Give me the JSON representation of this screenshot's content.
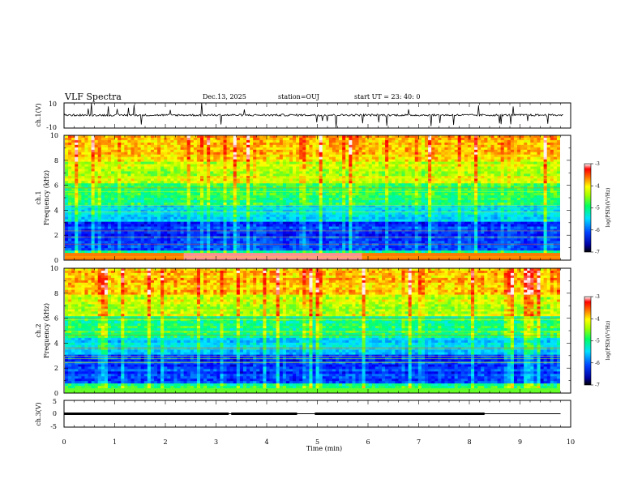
{
  "header": {
    "title": "VLF Spectra",
    "date": "Dec.13, 2025",
    "station": "station=OUJ",
    "start_ut": "start UT =  23: 40: 0"
  },
  "chart_data": [
    {
      "type": "line",
      "title": "",
      "ylabel": "ch.1(V)",
      "ylim": [
        -10,
        10
      ],
      "yticks": [
        "10",
        "-10"
      ],
      "xlim": [
        0,
        10
      ],
      "description_series": [
        {
          "values": [
            -3,
            2,
            -1,
            3,
            -2,
            1,
            -4,
            2,
            -2,
            3
          ]
        }
      ]
    },
    {
      "type": "heatmap",
      "ylabel_line1": "ch.1",
      "ylabel_line2": "Frequency (kHz)",
      "ylim": [
        0,
        10
      ],
      "yticks": [
        "0",
        "2",
        "4",
        "6",
        "8",
        "10"
      ],
      "xlim": [
        0,
        9.8
      ],
      "colorbar": {
        "label": "log(PSD)(V²/Hz)",
        "range": [
          -7,
          -3
        ],
        "ticks": [
          "-3",
          "-4",
          "-5",
          "-6",
          "-7"
        ]
      }
    },
    {
      "type": "heatmap",
      "ylabel_line1": "ch.2",
      "ylabel_line2": "Frequency (kHz)",
      "ylim": [
        0,
        10
      ],
      "yticks": [
        "0",
        "2",
        "4",
        "6",
        "8",
        "10"
      ],
      "xlim": [
        0,
        9.8
      ],
      "colorbar": {
        "label": "log(PSD)(V²/Hz)",
        "range": [
          -7,
          -3
        ],
        "ticks": [
          "-3",
          "-4",
          "-5",
          "-6",
          "-7"
        ]
      }
    },
    {
      "type": "line",
      "ylabel": "ch.3(V)",
      "ylim": [
        -5,
        5
      ],
      "yticks": [
        "5",
        "0",
        "-5"
      ],
      "xlim": [
        0,
        10
      ],
      "series": [
        {
          "x": [
            0,
            3.25,
            3.3,
            4.6,
            4.95,
            8.3,
            9.8
          ],
          "values": [
            0,
            0,
            0,
            0,
            0,
            0,
            0
          ]
        }
      ],
      "thick_segments": [
        [
          0,
          3.25
        ],
        [
          3.3,
          4.6
        ],
        [
          4.95,
          8.3
        ]
      ]
    }
  ],
  "xaxis": {
    "label": "Time (min)",
    "ticks": [
      "0",
      "1",
      "2",
      "3",
      "4",
      "5",
      "6",
      "7",
      "8",
      "9",
      "10"
    ]
  },
  "colors": {
    "colormap": [
      "#000080",
      "#0000ff",
      "#00a0ff",
      "#00ffff",
      "#00ff80",
      "#80ff00",
      "#ffff00",
      "#ff8000",
      "#ff0000",
      "#ffffff"
    ]
  }
}
